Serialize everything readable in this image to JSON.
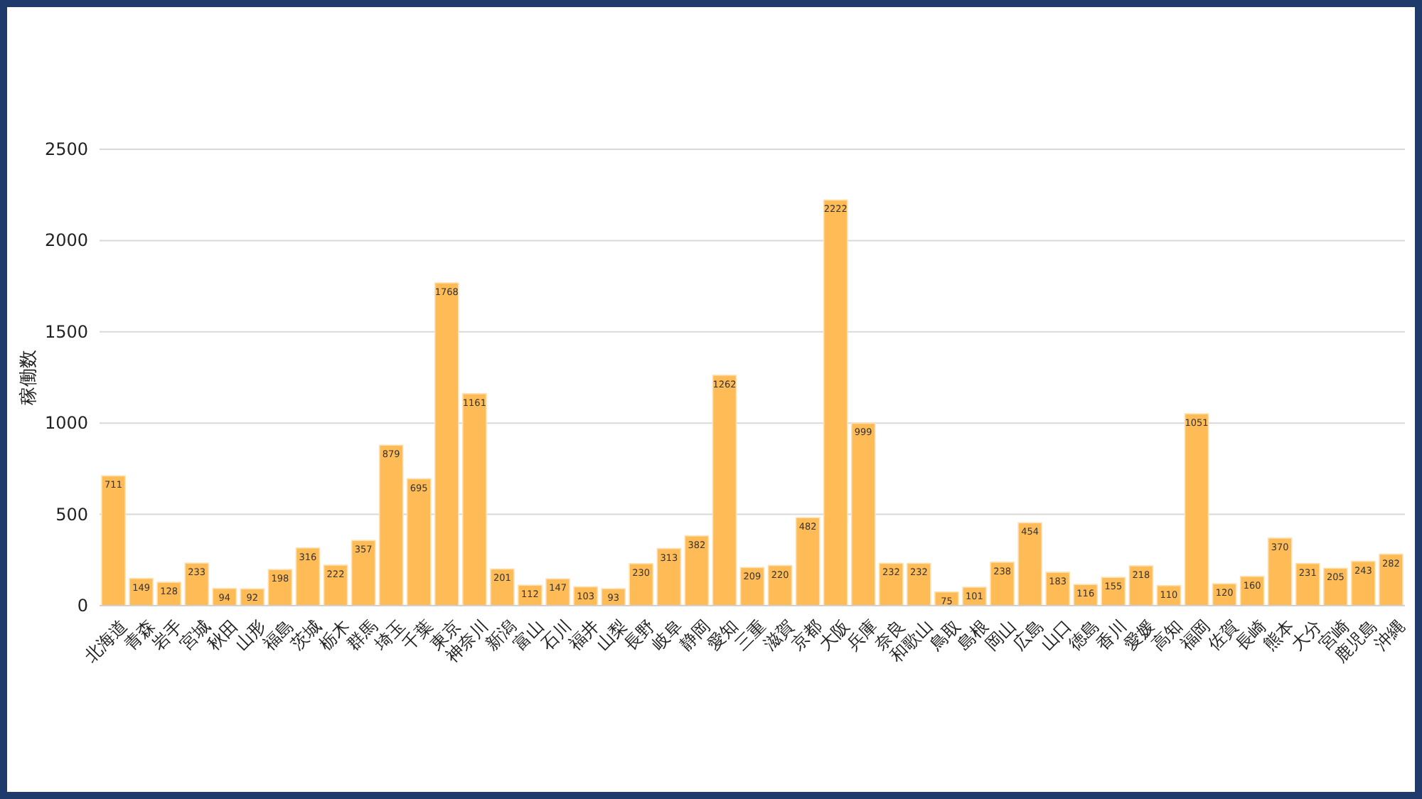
{
  "chart_data": {
    "type": "bar",
    "ylabel": "稼働数",
    "categories": [
      "北海道",
      "青森",
      "岩手",
      "宮城",
      "秋田",
      "山形",
      "福島",
      "茨城",
      "栃木",
      "群馬",
      "埼玉",
      "千葉",
      "東京",
      "神奈川",
      "新潟",
      "富山",
      "石川",
      "福井",
      "山梨",
      "長野",
      "岐阜",
      "静岡",
      "愛知",
      "三重",
      "滋賀",
      "京都",
      "大阪",
      "兵庫",
      "奈良",
      "和歌山",
      "鳥取",
      "島根",
      "岡山",
      "広島",
      "山口",
      "徳島",
      "香川",
      "愛媛",
      "高知",
      "福岡",
      "佐賀",
      "長崎",
      "熊本",
      "大分",
      "宮崎",
      "鹿児島",
      "沖縄"
    ],
    "values": [
      711,
      149,
      128,
      233,
      94,
      92,
      198,
      316,
      222,
      357,
      879,
      695,
      1768,
      1161,
      201,
      112,
      147,
      103,
      93,
      230,
      313,
      382,
      1262,
      209,
      220,
      482,
      2222,
      999,
      232,
      232,
      75,
      101,
      238,
      454,
      183,
      116,
      155,
      218,
      110,
      1051,
      120,
      160,
      370,
      231,
      205,
      243,
      282
    ],
    "color": "#ffbb55",
    "ylim": [
      0,
      2500
    ],
    "yticks": [
      0,
      500,
      1000,
      1500,
      2000,
      2500
    ],
    "grid": "y",
    "data_labels": true
  }
}
